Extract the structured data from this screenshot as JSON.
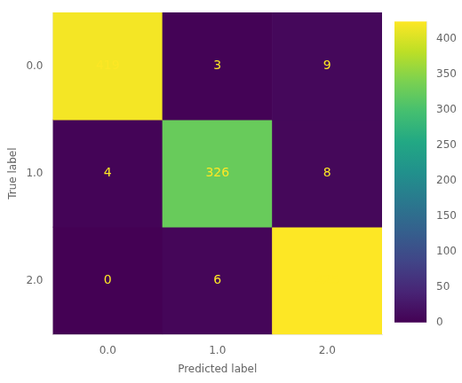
{
  "chart_data": {
    "type": "heatmap",
    "categories": [
      "0.0",
      "1.0",
      "2.0"
    ],
    "y_categories": [
      "0.0",
      "1.0",
      "2.0"
    ],
    "xlabel": "Predicted label",
    "ylabel": "True label",
    "matrix": [
      [
        419,
        3,
        9
      ],
      [
        4,
        326,
        8
      ],
      [
        0,
        6,
        425
      ]
    ],
    "colorbar_range": [
      0,
      425
    ],
    "colorbar_ticks": [
      0,
      50,
      100,
      150,
      200,
      250,
      300,
      350,
      400
    ],
    "data_labels": true,
    "grid": false,
    "legend": false
  }
}
